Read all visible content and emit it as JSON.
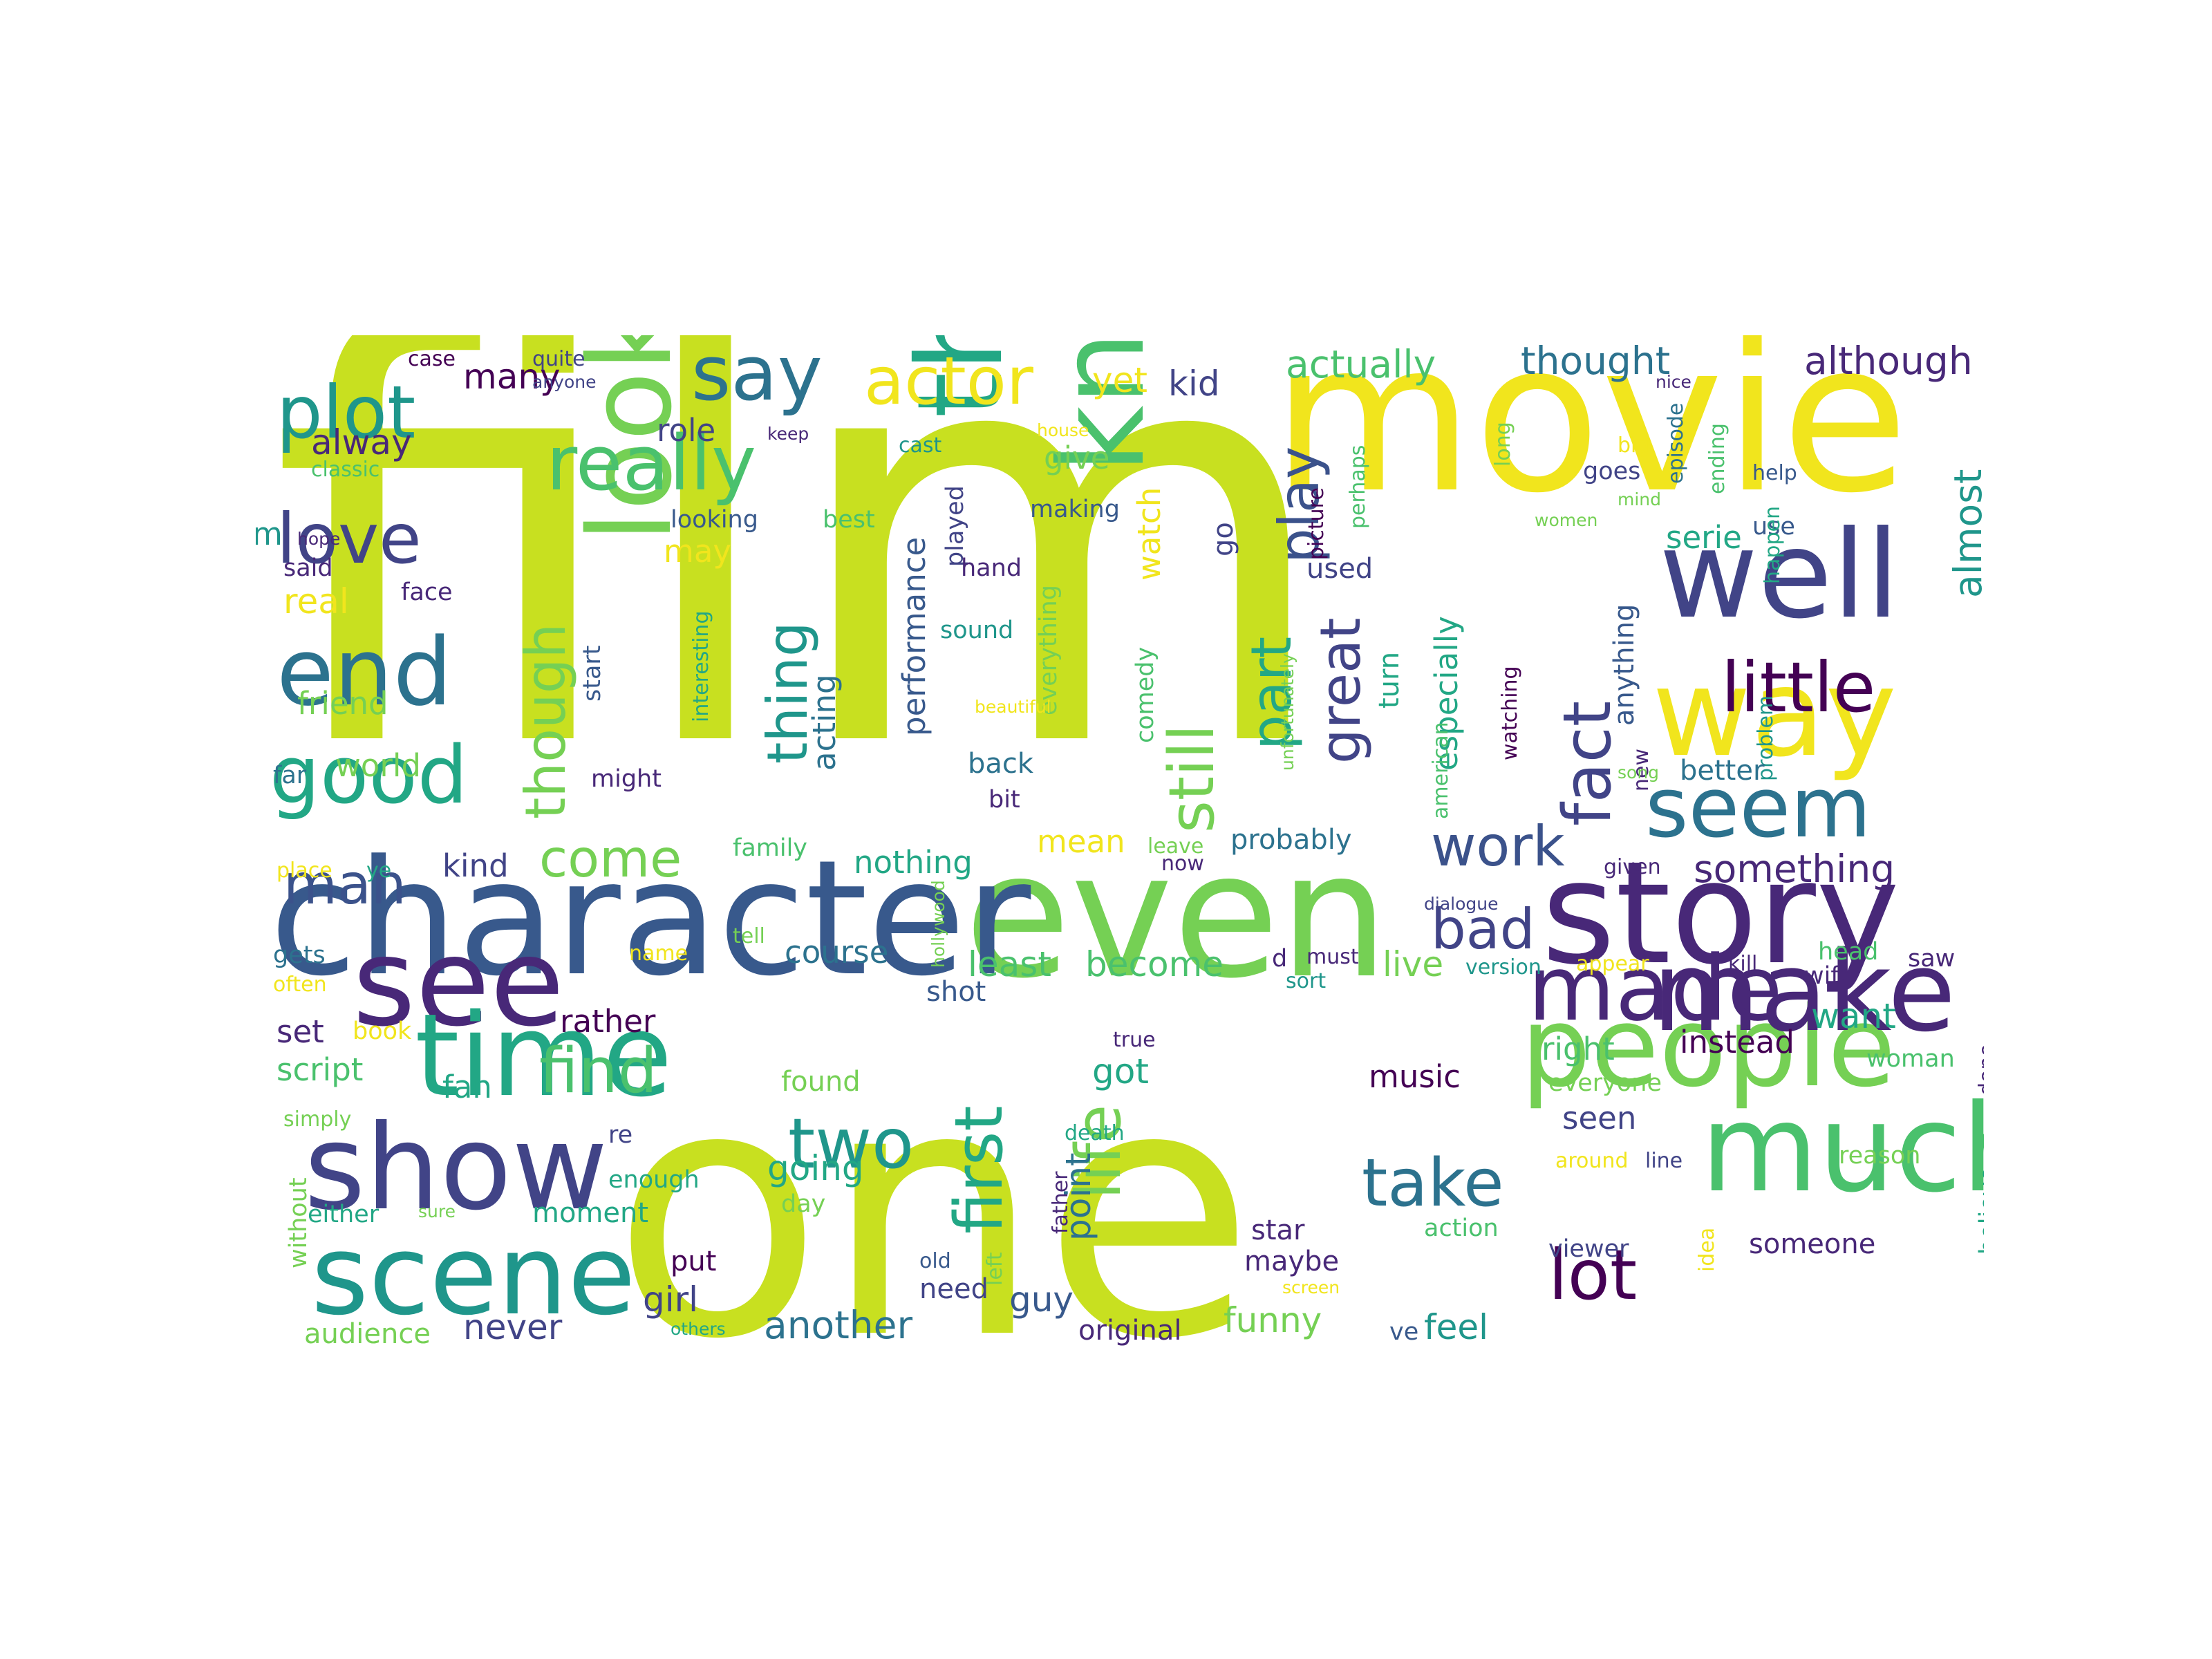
{
  "palette": {
    "background": "#ffffff",
    "lime": "#c8e020",
    "yellow": "#f1e51d",
    "green": "#75d054",
    "mint": "#4ac16d",
    "teal": "#22a785",
    "cyan": "#1f968b",
    "blue": "#2c728e",
    "steel": "#38598c",
    "indigo": "#414487",
    "navy": "#3b528b",
    "purple": "#482878",
    "dark": "#440154"
  },
  "words": [
    {
      "text": "film",
      "color": "lime"
    },
    {
      "text": "one",
      "color": "lime"
    },
    {
      "text": "movie",
      "color": "yellow"
    },
    {
      "text": "even",
      "color": "green"
    },
    {
      "text": "character",
      "color": "steel"
    },
    {
      "text": "story",
      "color": "purple"
    },
    {
      "text": "well",
      "color": "indigo"
    },
    {
      "text": "way",
      "color": "yellow"
    },
    {
      "text": "much",
      "color": "mint"
    },
    {
      "text": "people",
      "color": "green"
    },
    {
      "text": "make",
      "color": "purple"
    },
    {
      "text": "see",
      "color": "purple"
    },
    {
      "text": "show",
      "color": "indigo"
    },
    {
      "text": "time",
      "color": "teal"
    },
    {
      "text": "scene",
      "color": "cyan"
    },
    {
      "text": "think",
      "color": "teal"
    },
    {
      "text": "know",
      "color": "mint"
    },
    {
      "text": "look",
      "color": "green"
    },
    {
      "text": "made",
      "color": "purple"
    },
    {
      "text": "seem",
      "color": "blue"
    },
    {
      "text": "end",
      "color": "blue"
    },
    {
      "text": "good",
      "color": "teal"
    },
    {
      "text": "plot",
      "color": "cyan"
    },
    {
      "text": "really",
      "color": "mint"
    },
    {
      "text": "say",
      "color": "blue"
    },
    {
      "text": "actor",
      "color": "yellow"
    },
    {
      "text": "love",
      "color": "indigo"
    },
    {
      "text": "little",
      "color": "dark"
    },
    {
      "text": "director",
      "color": "cyan"
    },
    {
      "text": "two",
      "color": "cyan"
    },
    {
      "text": "take",
      "color": "blue"
    },
    {
      "text": "lot",
      "color": "dark"
    },
    {
      "text": "fact",
      "color": "indigo"
    },
    {
      "text": "still",
      "color": "green"
    },
    {
      "text": "first",
      "color": "teal"
    },
    {
      "text": "life",
      "color": "green"
    },
    {
      "text": "find",
      "color": "mint"
    },
    {
      "text": "work",
      "color": "navy"
    },
    {
      "text": "bad",
      "color": "indigo"
    },
    {
      "text": "great",
      "color": "indigo"
    },
    {
      "text": "part",
      "color": "teal"
    },
    {
      "text": "play",
      "color": "navy"
    },
    {
      "text": "thing",
      "color": "cyan"
    },
    {
      "text": "though",
      "color": "green"
    },
    {
      "text": "man",
      "color": "navy"
    },
    {
      "text": "come",
      "color": "green"
    },
    {
      "text": "something",
      "color": "purple"
    },
    {
      "text": "almost",
      "color": "cyan"
    },
    {
      "text": "although",
      "color": "purple"
    },
    {
      "text": "thought",
      "color": "blue"
    },
    {
      "text": "actually",
      "color": "mint"
    },
    {
      "text": "kid",
      "color": "indigo"
    },
    {
      "text": "yet",
      "color": "yellow"
    },
    {
      "text": "many",
      "color": "dark"
    },
    {
      "text": "case",
      "color": "dark"
    },
    {
      "text": "quite",
      "color": "indigo"
    },
    {
      "text": "anyone",
      "color": "indigo"
    },
    {
      "text": "role",
      "color": "indigo"
    },
    {
      "text": "keep",
      "color": "purple"
    },
    {
      "text": "alway",
      "color": "purple"
    },
    {
      "text": "classic",
      "color": "mint"
    },
    {
      "text": "cast",
      "color": "cyan"
    },
    {
      "text": "house",
      "color": "yellow"
    },
    {
      "text": "give",
      "color": "green"
    },
    {
      "text": "making",
      "color": "steel"
    },
    {
      "text": "best",
      "color": "mint"
    },
    {
      "text": "looking",
      "color": "steel"
    },
    {
      "text": "played",
      "color": "indigo"
    },
    {
      "text": "may",
      "color": "yellow"
    },
    {
      "text": "m",
      "color": "cyan"
    },
    {
      "text": "hope",
      "color": "purple"
    },
    {
      "text": "said",
      "color": "purple"
    },
    {
      "text": "face",
      "color": "purple"
    },
    {
      "text": "real",
      "color": "yellow"
    },
    {
      "text": "hand",
      "color": "purple"
    },
    {
      "text": "sound",
      "color": "cyan"
    },
    {
      "text": "performance",
      "color": "steel"
    },
    {
      "text": "acting",
      "color": "blue"
    },
    {
      "text": "watch",
      "color": "yellow"
    },
    {
      "text": "everything",
      "color": "green"
    },
    {
      "text": "comedy",
      "color": "mint"
    },
    {
      "text": "go",
      "color": "indigo"
    },
    {
      "text": "unfortunately",
      "color": "green"
    },
    {
      "text": "picture",
      "color": "dark"
    },
    {
      "text": "perhaps",
      "color": "mint"
    },
    {
      "text": "used",
      "color": "indigo"
    },
    {
      "text": "turn",
      "color": "teal"
    },
    {
      "text": "especially",
      "color": "teal"
    },
    {
      "text": "american",
      "color": "mint"
    },
    {
      "text": "watching",
      "color": "dark"
    },
    {
      "text": "long",
      "color": "green"
    },
    {
      "text": "women",
      "color": "green"
    },
    {
      "text": "mind",
      "color": "green"
    },
    {
      "text": "big",
      "color": "yellow"
    },
    {
      "text": "goes",
      "color": "indigo"
    },
    {
      "text": "nice",
      "color": "purple"
    },
    {
      "text": "episode",
      "color": "blue"
    },
    {
      "text": "ending",
      "color": "mint"
    },
    {
      "text": "help",
      "color": "steel"
    },
    {
      "text": "use",
      "color": "steel"
    },
    {
      "text": "serie",
      "color": "teal"
    },
    {
      "text": "happen",
      "color": "teal"
    },
    {
      "text": "anything",
      "color": "steel"
    },
    {
      "text": "new",
      "color": "purple"
    },
    {
      "text": "problem",
      "color": "cyan"
    },
    {
      "text": "song",
      "color": "green"
    },
    {
      "text": "better",
      "color": "blue"
    },
    {
      "text": "friend",
      "color": "green"
    },
    {
      "text": "start",
      "color": "steel"
    },
    {
      "text": "interesting",
      "color": "teal"
    },
    {
      "text": "beautiful",
      "color": "yellow"
    },
    {
      "text": "far",
      "color": "blue"
    },
    {
      "text": "world",
      "color": "green"
    },
    {
      "text": "might",
      "color": "purple"
    },
    {
      "text": "back",
      "color": "blue"
    },
    {
      "text": "bit",
      "color": "purple"
    },
    {
      "text": "mean",
      "color": "yellow"
    },
    {
      "text": "probably",
      "color": "blue"
    },
    {
      "text": "now",
      "color": "purple"
    },
    {
      "text": "leave",
      "color": "green"
    },
    {
      "text": "given",
      "color": "purple"
    },
    {
      "text": "dialogue",
      "color": "indigo"
    },
    {
      "text": "place",
      "color": "yellow"
    },
    {
      "text": "ye",
      "color": "teal"
    },
    {
      "text": "kind",
      "color": "indigo"
    },
    {
      "text": "family",
      "color": "mint"
    },
    {
      "text": "nothing",
      "color": "teal"
    },
    {
      "text": "tell",
      "color": "green"
    },
    {
      "text": "hollywood",
      "color": "green"
    },
    {
      "text": "gets",
      "color": "blue"
    },
    {
      "text": "name",
      "color": "yellow"
    },
    {
      "text": "course",
      "color": "blue"
    },
    {
      "text": "least",
      "color": "mint"
    },
    {
      "text": "become",
      "color": "mint"
    },
    {
      "text": "d",
      "color": "purple"
    },
    {
      "text": "must",
      "color": "purple"
    },
    {
      "text": "sort",
      "color": "cyan"
    },
    {
      "text": "live",
      "color": "green"
    },
    {
      "text": "version",
      "color": "cyan"
    },
    {
      "text": "appear",
      "color": "yellow"
    },
    {
      "text": "kill",
      "color": "purple"
    },
    {
      "text": "head",
      "color": "mint"
    },
    {
      "text": "saw",
      "color": "purple"
    },
    {
      "text": "wife",
      "color": "purple"
    },
    {
      "text": "often",
      "color": "yellow"
    },
    {
      "text": "shot",
      "color": "steel"
    },
    {
      "text": "set",
      "color": "purple"
    },
    {
      "text": "book",
      "color": "yellow"
    },
    {
      "text": "rather",
      "color": "dark"
    },
    {
      "text": "want",
      "color": "teal"
    },
    {
      "text": "right",
      "color": "mint"
    },
    {
      "text": "instead",
      "color": "dark"
    },
    {
      "text": "woman",
      "color": "mint"
    },
    {
      "text": "script",
      "color": "mint"
    },
    {
      "text": "found",
      "color": "green"
    },
    {
      "text": "fan",
      "color": "teal"
    },
    {
      "text": "true",
      "color": "purple"
    },
    {
      "text": "got",
      "color": "teal"
    },
    {
      "text": "music",
      "color": "dark"
    },
    {
      "text": "seen",
      "color": "indigo"
    },
    {
      "text": "everyone",
      "color": "green"
    },
    {
      "text": "done",
      "color": "purple"
    },
    {
      "text": "simply",
      "color": "green"
    },
    {
      "text": "re",
      "color": "indigo"
    },
    {
      "text": "death",
      "color": "teal"
    },
    {
      "text": "going",
      "color": "teal"
    },
    {
      "text": "point",
      "color": "blue"
    },
    {
      "text": "around",
      "color": "yellow"
    },
    {
      "text": "line",
      "color": "indigo"
    },
    {
      "text": "reason",
      "color": "green"
    },
    {
      "text": "without",
      "color": "green"
    },
    {
      "text": "enough",
      "color": "teal"
    },
    {
      "text": "day",
      "color": "green"
    },
    {
      "text": "father",
      "color": "purple"
    },
    {
      "text": "either",
      "color": "teal"
    },
    {
      "text": "sure",
      "color": "green"
    },
    {
      "text": "moment",
      "color": "teal"
    },
    {
      "text": "star",
      "color": "purple"
    },
    {
      "text": "action",
      "color": "mint"
    },
    {
      "text": "believe",
      "color": "teal"
    },
    {
      "text": "put",
      "color": "dark"
    },
    {
      "text": "old",
      "color": "steel"
    },
    {
      "text": "maybe",
      "color": "purple"
    },
    {
      "text": "viewer",
      "color": "indigo"
    },
    {
      "text": "someone",
      "color": "purple"
    },
    {
      "text": "idea",
      "color": "yellow"
    },
    {
      "text": "girl",
      "color": "indigo"
    },
    {
      "text": "need",
      "color": "indigo"
    },
    {
      "text": "left",
      "color": "green"
    },
    {
      "text": "screen",
      "color": "yellow"
    },
    {
      "text": "guy",
      "color": "steel"
    },
    {
      "text": "audience",
      "color": "green"
    },
    {
      "text": "never",
      "color": "indigo"
    },
    {
      "text": "others",
      "color": "teal"
    },
    {
      "text": "another",
      "color": "blue"
    },
    {
      "text": "original",
      "color": "purple"
    },
    {
      "text": "funny",
      "color": "green"
    },
    {
      "text": "ve",
      "color": "steel"
    },
    {
      "text": "feel",
      "color": "cyan"
    }
  ]
}
